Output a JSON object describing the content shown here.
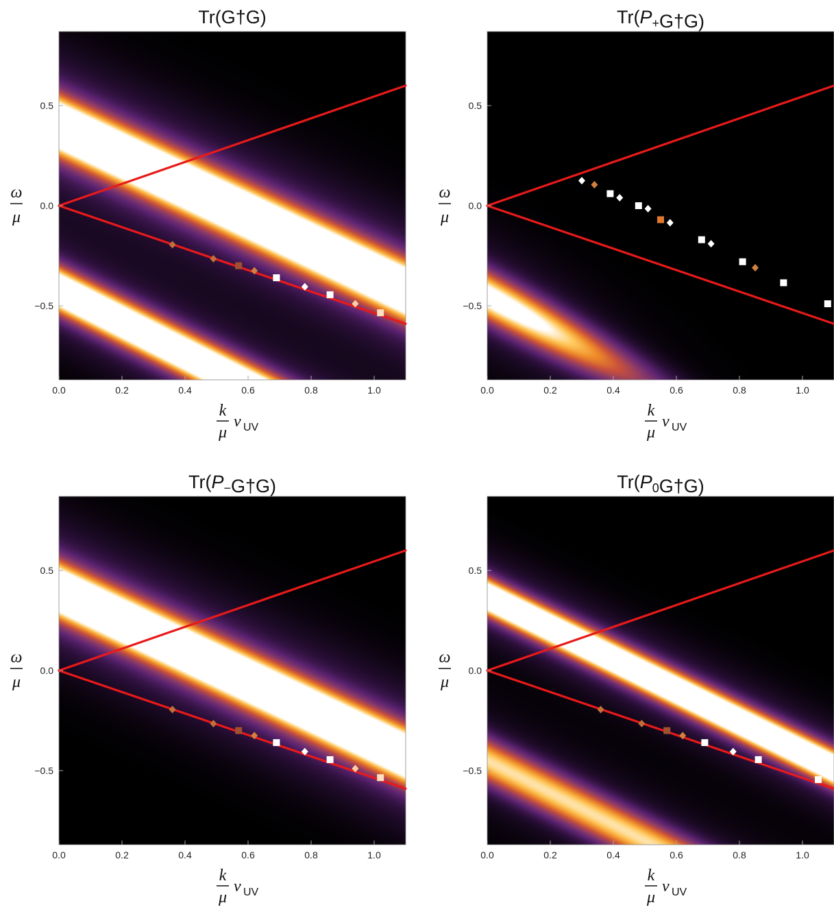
{
  "chart_data": [
    {
      "type": "heatmap",
      "title": "Tr(G†G)",
      "title_parts": [
        {
          "t": "Tr(G",
          "i": false
        },
        {
          "t": "†",
          "i": false
        },
        {
          "t": "G)",
          "i": false
        }
      ],
      "xlabel": "k/μ v_UV",
      "ylabel": "ω/μ",
      "xlim": [
        0,
        1.1
      ],
      "ylim": [
        -0.87,
        0.87
      ],
      "x_ticks": [
        "0.0",
        "0.2",
        "0.4",
        "0.6",
        "0.8",
        "1.0"
      ],
      "y_ticks": [
        "0.5",
        "0.0",
        "−0.5"
      ],
      "bands": [
        {
          "omega_at_k0": 0.4,
          "slope": -0.75,
          "width": 0.095,
          "intensity": 2.4,
          "halo": 0.55
        },
        {
          "omega_at_k0": -0.42,
          "slope": -0.8,
          "width": 0.075,
          "intensity": 2.2,
          "halo": 0.45
        }
      ],
      "light_cone": {
        "upper": [
          [
            0,
            0
          ],
          [
            1.1,
            0.6
          ]
        ],
        "lower": [
          [
            0,
            0
          ],
          [
            1.1,
            -0.59
          ]
        ]
      },
      "markers": [
        {
          "k": 0.36,
          "omega": -0.195,
          "shape": "diamond",
          "color": "#c0703a"
        },
        {
          "k": 0.49,
          "omega": -0.265,
          "shape": "diamond",
          "color": "#c0703a"
        },
        {
          "k": 0.57,
          "omega": -0.3,
          "shape": "square",
          "color": "#a05030"
        },
        {
          "k": 0.62,
          "omega": -0.325,
          "shape": "diamond",
          "color": "#d08040"
        },
        {
          "k": 0.69,
          "omega": -0.36,
          "shape": "square",
          "color": "#ffffff"
        },
        {
          "k": 0.78,
          "omega": -0.405,
          "shape": "diamond",
          "color": "#ffffff"
        },
        {
          "k": 0.86,
          "omega": -0.445,
          "shape": "square",
          "color": "#ffffff"
        },
        {
          "k": 0.94,
          "omega": -0.49,
          "shape": "diamond",
          "color": "#ffd0a0"
        },
        {
          "k": 1.02,
          "omega": -0.535,
          "shape": "square",
          "color": "#ffe0c0"
        }
      ]
    },
    {
      "type": "heatmap",
      "title": "Tr(P+G†G)",
      "title_parts": [
        {
          "t": "Tr(",
          "i": false
        },
        {
          "t": "P",
          "i": true
        },
        {
          "t": "+",
          "i": false,
          "sub": true
        },
        {
          "t": "G†G)",
          "i": false
        }
      ],
      "xlabel": "k/μ v_UV",
      "ylabel": "ω/μ",
      "xlim": [
        0,
        1.1
      ],
      "ylim": [
        -0.87,
        0.87
      ],
      "x_ticks": [
        "0.0",
        "0.2",
        "0.4",
        "0.6",
        "0.8",
        "1.0"
      ],
      "y_ticks": [
        "0.5",
        "0.0",
        "−0.5"
      ],
      "bands": [
        {
          "omega_at_k0": -0.45,
          "slope": -0.85,
          "width": 0.085,
          "intensity": 1.6,
          "halo": 0.45,
          "k_fade": 0.55
        }
      ],
      "light_cone": {
        "upper": [
          [
            0,
            0
          ],
          [
            1.1,
            0.6
          ]
        ],
        "lower": [
          [
            0,
            0
          ],
          [
            1.1,
            -0.59
          ]
        ]
      },
      "markers": [
        {
          "k": 0.3,
          "omega": 0.125,
          "shape": "diamond",
          "color": "#ffffff"
        },
        {
          "k": 0.34,
          "omega": 0.105,
          "shape": "diamond",
          "color": "#d08040"
        },
        {
          "k": 0.39,
          "omega": 0.06,
          "shape": "square",
          "color": "#ffffff"
        },
        {
          "k": 0.42,
          "omega": 0.04,
          "shape": "diamond",
          "color": "#ffffff"
        },
        {
          "k": 0.48,
          "omega": 0.0,
          "shape": "square",
          "color": "#ffffff"
        },
        {
          "k": 0.51,
          "omega": -0.015,
          "shape": "diamond",
          "color": "#ffffff"
        },
        {
          "k": 0.55,
          "omega": -0.07,
          "shape": "square",
          "color": "#e07830"
        },
        {
          "k": 0.58,
          "omega": -0.085,
          "shape": "diamond",
          "color": "#ffffff"
        },
        {
          "k": 0.68,
          "omega": -0.17,
          "shape": "square",
          "color": "#ffffff"
        },
        {
          "k": 0.71,
          "omega": -0.19,
          "shape": "diamond",
          "color": "#ffffff"
        },
        {
          "k": 0.81,
          "omega": -0.28,
          "shape": "square",
          "color": "#ffffff"
        },
        {
          "k": 0.85,
          "omega": -0.31,
          "shape": "diamond",
          "color": "#d08040"
        },
        {
          "k": 0.94,
          "omega": -0.385,
          "shape": "square",
          "color": "#ffffff"
        },
        {
          "k": 1.08,
          "omega": -0.49,
          "shape": "square",
          "color": "#ffffff"
        }
      ]
    },
    {
      "type": "heatmap",
      "title": "Tr(P−G†G)",
      "title_parts": [
        {
          "t": "Tr(",
          "i": false
        },
        {
          "t": "P",
          "i": true
        },
        {
          "t": "−",
          "i": false,
          "sub": true
        },
        {
          "t": "G†G)",
          "i": false
        }
      ],
      "xlabel": "k/μ v_UV",
      "ylabel": "ω/μ",
      "xlim": [
        0,
        1.1
      ],
      "ylim": [
        -0.87,
        0.87
      ],
      "x_ticks": [
        "0.0",
        "0.2",
        "0.4",
        "0.6",
        "0.8",
        "1.0"
      ],
      "y_ticks": [
        "0.5",
        "0.0",
        "−0.5"
      ],
      "bands": [
        {
          "omega_at_k0": 0.4,
          "slope": -0.75,
          "width": 0.09,
          "intensity": 2.4,
          "halo": 0.55
        }
      ],
      "light_cone": {
        "upper": [
          [
            0,
            0
          ],
          [
            1.1,
            0.6
          ]
        ],
        "lower": [
          [
            0,
            0
          ],
          [
            1.1,
            -0.59
          ]
        ]
      },
      "markers": [
        {
          "k": 0.36,
          "omega": -0.195,
          "shape": "diamond",
          "color": "#c0703a"
        },
        {
          "k": 0.49,
          "omega": -0.265,
          "shape": "diamond",
          "color": "#c0703a"
        },
        {
          "k": 0.57,
          "omega": -0.3,
          "shape": "square",
          "color": "#a05030"
        },
        {
          "k": 0.62,
          "omega": -0.325,
          "shape": "diamond",
          "color": "#d08040"
        },
        {
          "k": 0.69,
          "omega": -0.36,
          "shape": "square",
          "color": "#ffffff"
        },
        {
          "k": 0.78,
          "omega": -0.405,
          "shape": "diamond",
          "color": "#ffffff"
        },
        {
          "k": 0.86,
          "omega": -0.445,
          "shape": "square",
          "color": "#ffffff"
        },
        {
          "k": 0.94,
          "omega": -0.49,
          "shape": "diamond",
          "color": "#ffd0a0"
        },
        {
          "k": 1.02,
          "omega": -0.535,
          "shape": "square",
          "color": "#ffe0c0"
        }
      ]
    },
    {
      "type": "heatmap",
      "title": "Tr(P0G†G)",
      "title_parts": [
        {
          "t": "Tr(",
          "i": false
        },
        {
          "t": "P",
          "i": true
        },
        {
          "t": "0",
          "i": false,
          "sub": true
        },
        {
          "t": "G†G)",
          "i": false
        }
      ],
      "xlabel": "k/μ v_UV",
      "ylabel": "ω/μ",
      "xlim": [
        0,
        1.1
      ],
      "ylim": [
        -0.87,
        0.87
      ],
      "x_ticks": [
        "0.0",
        "0.2",
        "0.4",
        "0.6",
        "0.8",
        "1.0"
      ],
      "y_ticks": [
        "0.5",
        "0.0",
        "−0.5"
      ],
      "bands": [
        {
          "omega_at_k0": 0.37,
          "slope": -0.78,
          "width": 0.06,
          "intensity": 2.3,
          "halo": 0.45
        },
        {
          "omega_at_k0": -0.45,
          "slope": -0.8,
          "width": 0.08,
          "intensity": 1.3,
          "halo": 0.4
        }
      ],
      "light_cone": {
        "upper": [
          [
            0,
            0
          ],
          [
            1.1,
            0.6
          ]
        ],
        "lower": [
          [
            0,
            0
          ],
          [
            1.1,
            -0.59
          ]
        ]
      },
      "markers": [
        {
          "k": 0.36,
          "omega": -0.195,
          "shape": "diamond",
          "color": "#c0703a"
        },
        {
          "k": 0.49,
          "omega": -0.265,
          "shape": "diamond",
          "color": "#c0703a"
        },
        {
          "k": 0.57,
          "omega": -0.3,
          "shape": "square",
          "color": "#a05030"
        },
        {
          "k": 0.62,
          "omega": -0.325,
          "shape": "diamond",
          "color": "#d08040"
        },
        {
          "k": 0.69,
          "omega": -0.36,
          "shape": "square",
          "color": "#ffffff"
        },
        {
          "k": 0.78,
          "omega": -0.405,
          "shape": "diamond",
          "color": "#ffffff"
        },
        {
          "k": 0.86,
          "omega": -0.445,
          "shape": "square",
          "color": "#ffffff"
        },
        {
          "k": 1.05,
          "omega": -0.545,
          "shape": "square",
          "color": "#ffffff"
        }
      ]
    }
  ],
  "colors": {
    "background": "#000000",
    "light_cone": "#e81a1a",
    "colormap": [
      "#000000",
      "#2a0f38",
      "#5b2371",
      "#8a3a6a",
      "#c8503c",
      "#ee8a28",
      "#ffc85a",
      "#ffffff"
    ]
  }
}
